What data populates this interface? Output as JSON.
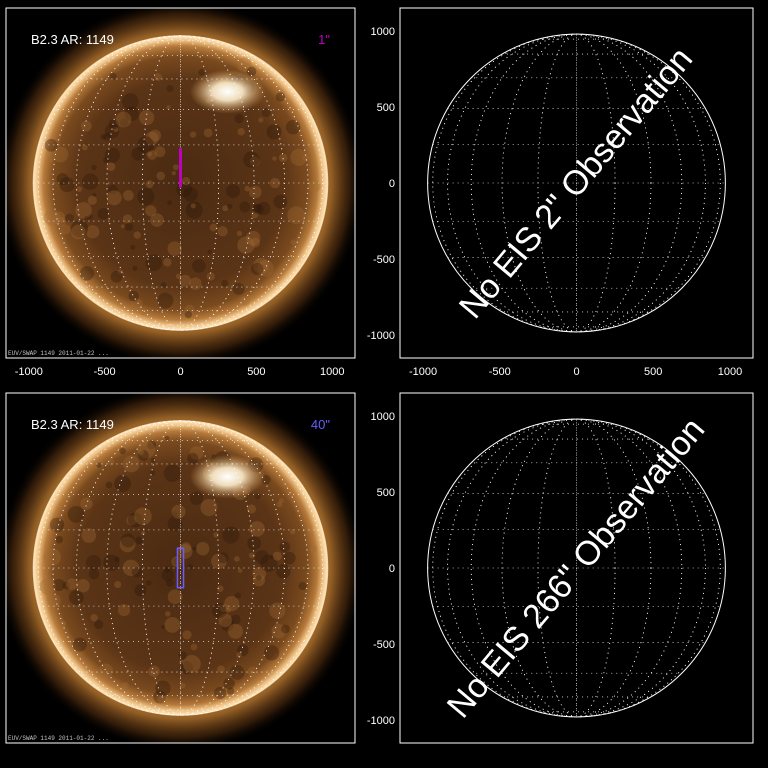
{
  "chart_data": [
    {
      "type": "image",
      "panel": "top-left",
      "panel_label": "B2.3 AR: 1149",
      "slit_label": "1\"",
      "slit_color": "#c000c0",
      "slit_shape": "line",
      "slit_center_arcsec": [
        0,
        100
      ],
      "slit_extent_arcsec": [
        2,
        260
      ],
      "xlim": [
        -1150,
        1150
      ],
      "ylim": [
        -1150,
        1150
      ],
      "xticks": [
        -1000,
        -500,
        0,
        500,
        1000
      ],
      "yticks": [
        -1000,
        -500,
        0,
        500,
        1000
      ],
      "show_xtick_labels": true,
      "show_ytick_labels": false,
      "disk_radius_arcsec": 970,
      "corner_text": "EUV/SWAP 1149 2011-01-22 ...",
      "background": "solar EUV disk image, copper colormap"
    },
    {
      "type": "image",
      "panel": "top-right",
      "overlay_text": "No EIS 2\" Observation",
      "xlim": [
        -1150,
        1150
      ],
      "ylim": [
        -1150,
        1150
      ],
      "xticks": [
        -1000,
        -500,
        0,
        500,
        1000
      ],
      "yticks": [
        -1000,
        -500,
        0,
        500,
        1000
      ],
      "show_xtick_labels": true,
      "show_ytick_labels": true,
      "disk_radius_arcsec": 970,
      "background": "black"
    },
    {
      "type": "image",
      "panel": "bottom-left",
      "panel_label": "B2.3 AR: 1149",
      "slit_label": "40\"",
      "slit_color": "#6a5cff",
      "slit_shape": "rectangle",
      "slit_center_arcsec": [
        0,
        0
      ],
      "slit_extent_arcsec": [
        40,
        260
      ],
      "xlim": [
        -1150,
        1150
      ],
      "ylim": [
        -1150,
        1150
      ],
      "xticks": [
        -1000,
        -500,
        0,
        500,
        1000
      ],
      "yticks": [
        -1000,
        -500,
        0,
        500,
        1000
      ],
      "show_xtick_labels": false,
      "show_ytick_labels": false,
      "disk_radius_arcsec": 970,
      "corner_text": "EUV/SWAP 1149 2011-01-22 ...",
      "background": "solar EUV disk image, copper colormap"
    },
    {
      "type": "image",
      "panel": "bottom-right",
      "overlay_text": "No EIS 266\" Observation",
      "xlim": [
        -1150,
        1150
      ],
      "ylim": [
        -1150,
        1150
      ],
      "xticks": [
        -1000,
        -500,
        0,
        500,
        1000
      ],
      "yticks": [
        -1000,
        -500,
        0,
        500,
        1000
      ],
      "show_xtick_labels": false,
      "show_ytick_labels": true,
      "disk_radius_arcsec": 970,
      "background": "black"
    }
  ],
  "colors": {
    "background": "#000000",
    "axes": "#ffffff",
    "grid": "#ffffff",
    "sun_core": "#4a2a12",
    "sun_corona": "#c98a3e",
    "active_region": "#fff4dc"
  }
}
